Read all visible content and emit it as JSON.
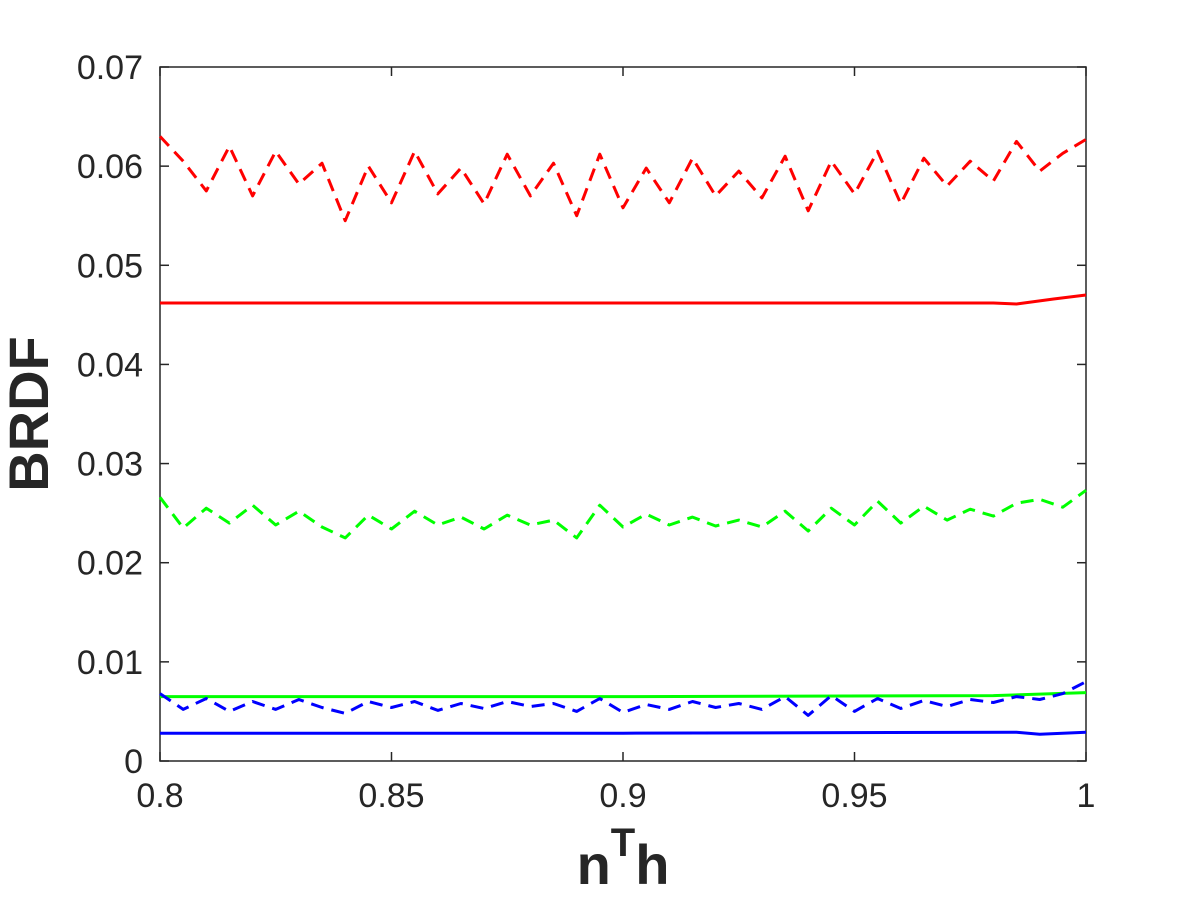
{
  "chart_data": {
    "type": "line",
    "xlabel": {
      "base": "n",
      "sup": "T",
      "rest": "h"
    },
    "ylabel": "BRDF",
    "xlim": [
      0.8,
      1.0
    ],
    "ylim": [
      0,
      0.07
    ],
    "x_ticks": [
      "0.8",
      "0.85",
      "0.9",
      "0.95",
      "1"
    ],
    "y_ticks": [
      "0",
      "0.01",
      "0.02",
      "0.03",
      "0.04",
      "0.05",
      "0.06",
      "0.07"
    ],
    "grid": false,
    "legend": null,
    "series": [
      {
        "color": "#ff0000",
        "style": "solid",
        "points": [
          [
            0.8,
            0.0462
          ],
          [
            0.9,
            0.0462
          ],
          [
            0.98,
            0.0462
          ],
          [
            0.985,
            0.0461
          ],
          [
            0.993,
            0.0466
          ],
          [
            1.0,
            0.047
          ]
        ]
      },
      {
        "color": "#ff0000",
        "style": "dashed",
        "points": [
          [
            0.8,
            0.063
          ],
          [
            0.805,
            0.0605
          ],
          [
            0.81,
            0.0575
          ],
          [
            0.815,
            0.062
          ],
          [
            0.82,
            0.057
          ],
          [
            0.825,
            0.0615
          ],
          [
            0.83,
            0.0582
          ],
          [
            0.835,
            0.0603
          ],
          [
            0.84,
            0.0545
          ],
          [
            0.845,
            0.06
          ],
          [
            0.85,
            0.0563
          ],
          [
            0.855,
            0.0615
          ],
          [
            0.86,
            0.0572
          ],
          [
            0.865,
            0.0598
          ],
          [
            0.87,
            0.0562
          ],
          [
            0.875,
            0.0612
          ],
          [
            0.88,
            0.057
          ],
          [
            0.885,
            0.0603
          ],
          [
            0.89,
            0.055
          ],
          [
            0.895,
            0.0612
          ],
          [
            0.9,
            0.0558
          ],
          [
            0.905,
            0.0598
          ],
          [
            0.91,
            0.0563
          ],
          [
            0.915,
            0.0608
          ],
          [
            0.92,
            0.057
          ],
          [
            0.925,
            0.0595
          ],
          [
            0.93,
            0.0568
          ],
          [
            0.935,
            0.061
          ],
          [
            0.94,
            0.0555
          ],
          [
            0.945,
            0.0605
          ],
          [
            0.95,
            0.0572
          ],
          [
            0.955,
            0.0615
          ],
          [
            0.96,
            0.0562
          ],
          [
            0.965,
            0.0608
          ],
          [
            0.97,
            0.058
          ],
          [
            0.975,
            0.0605
          ],
          [
            0.98,
            0.0585
          ],
          [
            0.985,
            0.0625
          ],
          [
            0.99,
            0.0595
          ],
          [
            0.995,
            0.0613
          ],
          [
            1.0,
            0.0627
          ]
        ]
      },
      {
        "color": "#00ff00",
        "style": "solid",
        "points": [
          [
            0.8,
            0.0065
          ],
          [
            0.9,
            0.0065
          ],
          [
            0.98,
            0.0066
          ],
          [
            1.0,
            0.0069
          ]
        ]
      },
      {
        "color": "#00ff00",
        "style": "dashed",
        "points": [
          [
            0.8,
            0.0266
          ],
          [
            0.805,
            0.0235
          ],
          [
            0.81,
            0.0255
          ],
          [
            0.815,
            0.024
          ],
          [
            0.82,
            0.0258
          ],
          [
            0.825,
            0.0238
          ],
          [
            0.83,
            0.0252
          ],
          [
            0.835,
            0.0236
          ],
          [
            0.84,
            0.0225
          ],
          [
            0.845,
            0.0248
          ],
          [
            0.85,
            0.0234
          ],
          [
            0.855,
            0.0252
          ],
          [
            0.86,
            0.0238
          ],
          [
            0.865,
            0.0246
          ],
          [
            0.87,
            0.0234
          ],
          [
            0.875,
            0.0248
          ],
          [
            0.88,
            0.0238
          ],
          [
            0.885,
            0.0243
          ],
          [
            0.89,
            0.0225
          ],
          [
            0.895,
            0.0258
          ],
          [
            0.9,
            0.0236
          ],
          [
            0.905,
            0.0249
          ],
          [
            0.91,
            0.0238
          ],
          [
            0.915,
            0.0246
          ],
          [
            0.92,
            0.0237
          ],
          [
            0.925,
            0.0243
          ],
          [
            0.93,
            0.0236
          ],
          [
            0.935,
            0.0252
          ],
          [
            0.94,
            0.0232
          ],
          [
            0.945,
            0.0255
          ],
          [
            0.95,
            0.0238
          ],
          [
            0.955,
            0.0262
          ],
          [
            0.96,
            0.024
          ],
          [
            0.965,
            0.0257
          ],
          [
            0.97,
            0.0243
          ],
          [
            0.975,
            0.0254
          ],
          [
            0.98,
            0.0247
          ],
          [
            0.985,
            0.026
          ],
          [
            0.99,
            0.0264
          ],
          [
            0.995,
            0.0256
          ],
          [
            1.0,
            0.0273
          ]
        ]
      },
      {
        "color": "#0000ff",
        "style": "solid",
        "points": [
          [
            0.8,
            0.0028
          ],
          [
            0.9,
            0.0028
          ],
          [
            0.985,
            0.0029
          ],
          [
            0.99,
            0.0027
          ],
          [
            1.0,
            0.0029
          ]
        ]
      },
      {
        "color": "#0000ff",
        "style": "dashed",
        "points": [
          [
            0.8,
            0.0068
          ],
          [
            0.805,
            0.0052
          ],
          [
            0.81,
            0.0063
          ],
          [
            0.815,
            0.005
          ],
          [
            0.82,
            0.006
          ],
          [
            0.825,
            0.0052
          ],
          [
            0.83,
            0.0062
          ],
          [
            0.835,
            0.0054
          ],
          [
            0.84,
            0.0048
          ],
          [
            0.845,
            0.006
          ],
          [
            0.85,
            0.0054
          ],
          [
            0.855,
            0.006
          ],
          [
            0.86,
            0.0051
          ],
          [
            0.865,
            0.0058
          ],
          [
            0.87,
            0.0053
          ],
          [
            0.875,
            0.006
          ],
          [
            0.88,
            0.0055
          ],
          [
            0.885,
            0.0058
          ],
          [
            0.89,
            0.005
          ],
          [
            0.895,
            0.0063
          ],
          [
            0.9,
            0.0049
          ],
          [
            0.905,
            0.0057
          ],
          [
            0.91,
            0.0052
          ],
          [
            0.915,
            0.006
          ],
          [
            0.92,
            0.0054
          ],
          [
            0.925,
            0.0058
          ],
          [
            0.93,
            0.0052
          ],
          [
            0.935,
            0.0065
          ],
          [
            0.94,
            0.0046
          ],
          [
            0.945,
            0.0066
          ],
          [
            0.95,
            0.005
          ],
          [
            0.955,
            0.0063
          ],
          [
            0.96,
            0.0053
          ],
          [
            0.965,
            0.0061
          ],
          [
            0.97,
            0.0055
          ],
          [
            0.975,
            0.0062
          ],
          [
            0.98,
            0.0059
          ],
          [
            0.985,
            0.0065
          ],
          [
            0.99,
            0.0062
          ],
          [
            0.995,
            0.0068
          ],
          [
            1.0,
            0.008
          ]
        ]
      }
    ]
  }
}
